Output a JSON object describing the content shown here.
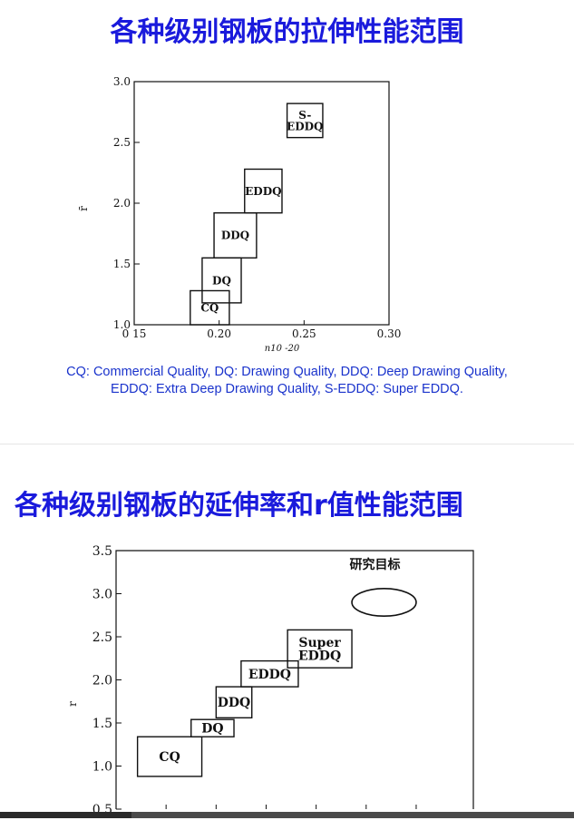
{
  "slide1": {
    "title": "各种级别钢板的拉伸性能范围",
    "caption_line1": "CQ: Commercial Quality, DQ: Drawing Quality, DDQ: Deep Drawing Quality,",
    "caption_line2": "EDDQ: Extra Deep Drawing Quality, S-EDDQ: Super EDDQ."
  },
  "slide2": {
    "title": "各种级别钢板的延伸率和r值性能范围"
  },
  "colors": {
    "title": "#1a1adc",
    "caption": "#1a33cc"
  },
  "chart_data": [
    {
      "type": "range-boxes",
      "xlabel": "n10 -20",
      "ylabel": "r̄",
      "xlim": [
        0.15,
        0.3
      ],
      "ylim": [
        1.0,
        3.0
      ],
      "xticks": [
        {
          "value": 0.15,
          "label": "0 15"
        },
        {
          "value": 0.2,
          "label": "0.20"
        },
        {
          "value": 0.25,
          "label": "0.25"
        },
        {
          "value": 0.3,
          "label": "0.30"
        }
      ],
      "yticks": [
        {
          "value": 1.0,
          "label": "1.0"
        },
        {
          "value": 1.5,
          "label": "1.5"
        },
        {
          "value": 2.0,
          "label": "2.0"
        },
        {
          "value": 2.5,
          "label": "2.5"
        },
        {
          "value": 3.0,
          "label": "3.0"
        }
      ],
      "boxes": [
        {
          "label": "CQ",
          "x": [
            0.183,
            0.206
          ],
          "y": [
            1.0,
            1.28
          ]
        },
        {
          "label": "DQ",
          "x": [
            0.19,
            0.213
          ],
          "y": [
            1.18,
            1.55
          ]
        },
        {
          "label": "DDQ",
          "x": [
            0.197,
            0.222
          ],
          "y": [
            1.55,
            1.92
          ]
        },
        {
          "label": "EDDQ",
          "x": [
            0.215,
            0.237
          ],
          "y": [
            1.92,
            2.28
          ]
        },
        {
          "label": "S-\nEDDQ",
          "x": [
            0.24,
            0.261
          ],
          "y": [
            2.54,
            2.82
          ]
        }
      ]
    },
    {
      "type": "range-boxes",
      "xlabel": "",
      "ylabel": "r",
      "ylim": [
        0.5,
        3.5
      ],
      "yticks": [
        {
          "value": 0.5,
          "label": "0.5"
        },
        {
          "value": 1.0,
          "label": "1.0"
        },
        {
          "value": 1.5,
          "label": "1.5"
        },
        {
          "value": 2.0,
          "label": "2.0"
        },
        {
          "value": 2.5,
          "label": "2.5"
        },
        {
          "value": 3.0,
          "label": "3.0"
        },
        {
          "value": 3.5,
          "label": "3.5"
        }
      ],
      "boxes": [
        {
          "label": "CQ",
          "x": [
            0.06,
            0.24
          ],
          "y": [
            0.88,
            1.34
          ]
        },
        {
          "label": "DQ",
          "x": [
            0.21,
            0.33
          ],
          "y": [
            1.34,
            1.54
          ]
        },
        {
          "label": "DDQ",
          "x": [
            0.28,
            0.38
          ],
          "y": [
            1.56,
            1.92
          ]
        },
        {
          "label": "EDDQ",
          "x": [
            0.35,
            0.51
          ],
          "y": [
            1.92,
            2.22
          ]
        },
        {
          "label": "Super\nEDDQ",
          "x": [
            0.48,
            0.66
          ],
          "y": [
            2.14,
            2.58
          ]
        }
      ],
      "target": {
        "label": "研究目标",
        "cx": 0.75,
        "cy": 2.9,
        "rx": 0.09,
        "ry": 0.16
      }
    }
  ]
}
